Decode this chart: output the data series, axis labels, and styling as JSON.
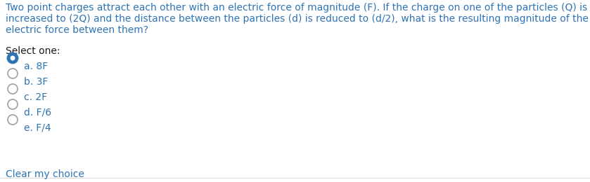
{
  "question_text_line1": "Two point charges attract each other with an electric force of magnitude (F). If the charge on one of the particles (Q) is",
  "question_text_line2": "increased to (2Q) and the distance between the particles (d) is reduced to (d/2), what is the resulting magnitude of the",
  "question_text_line3": "electric force between them?",
  "select_label": "Select one:",
  "options": [
    "a. 8F",
    "b. 3F",
    "c. 2F",
    "d. F/6",
    "e. F/4"
  ],
  "selected_index": 0,
  "text_color": "#2e74b5",
  "question_color": "#2e74b5",
  "select_color": "#1a1a1a",
  "bg_color": "#ffffff",
  "radio_selected_fill": "#2e74b5",
  "radio_selected_edge": "#2e74b5",
  "radio_unselected_edge": "#a0a0a0",
  "font_size_question": 10.0,
  "font_size_options": 10.0,
  "footer_text": "Clear my choice"
}
